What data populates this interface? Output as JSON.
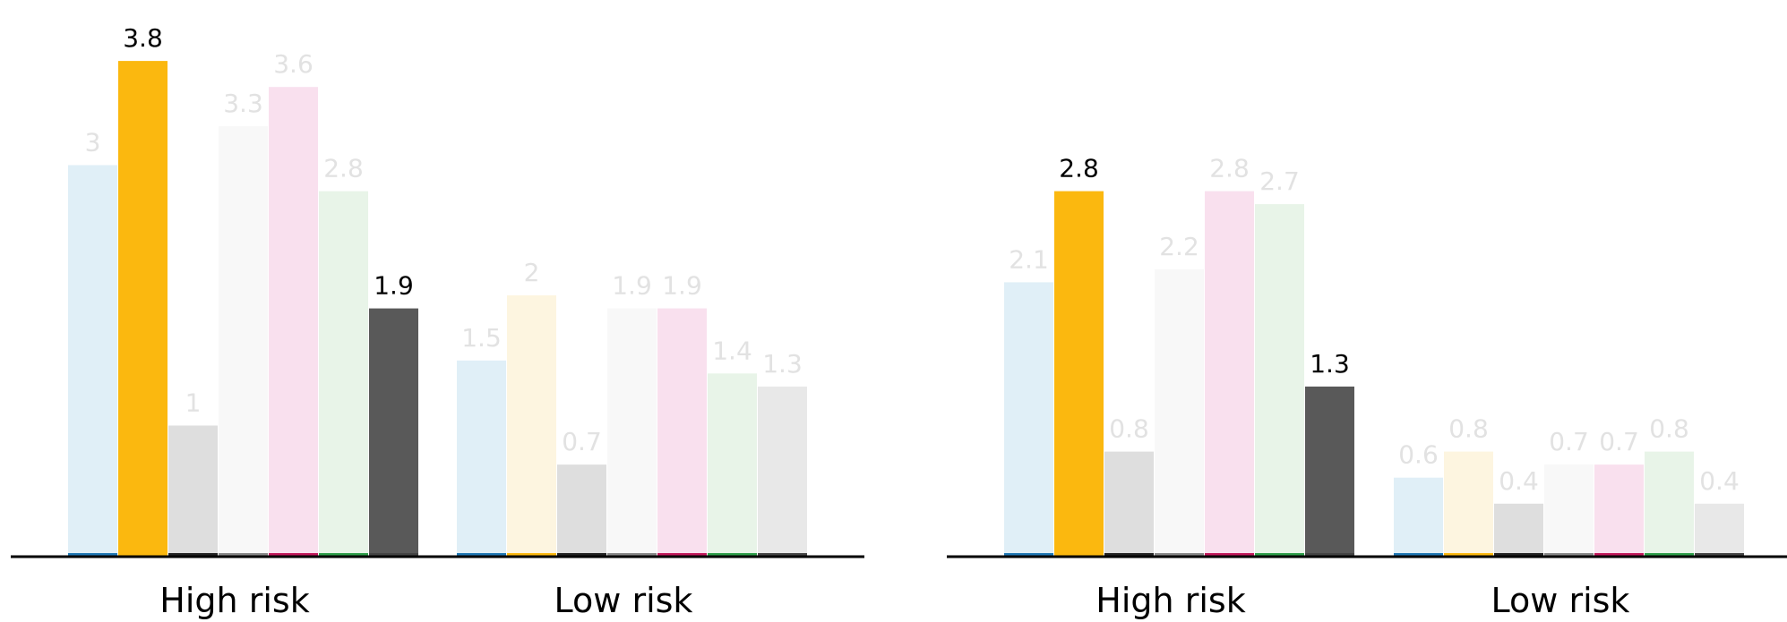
{
  "series_colors": [
    "#e0eff7",
    "#fbb80f",
    "#dedede",
    "#f8f8f8",
    "#f9e0ee",
    "#e8f4e8",
    "#595959"
  ],
  "faded_bar_colors": [
    "#e0eff7",
    "#fdf5e0",
    "#dedede",
    "#f8f8f8",
    "#f9e0ee",
    "#e8f4e8",
    "#e8e8e8"
  ],
  "series_base_colors": [
    "#1f77b4",
    "#fbb80f",
    "#222222",
    "#888888",
    "#c2185b",
    "#2e9e4a",
    "#444444"
  ],
  "label_colors": {
    "highlight": "#000000",
    "muted": "#e2e2e2"
  },
  "chart_data": [
    {
      "type": "bar",
      "categories": [
        "High risk",
        "Low risk"
      ],
      "ylim": [
        0,
        4.2
      ],
      "series": [
        {
          "values": [
            3,
            1.5
          ]
        },
        {
          "values": [
            3.8,
            2
          ]
        },
        {
          "values": [
            1,
            0.7
          ]
        },
        {
          "values": [
            3.3,
            1.9
          ]
        },
        {
          "values": [
            3.6,
            1.9
          ]
        },
        {
          "values": [
            2.8,
            1.4
          ]
        },
        {
          "values": [
            1.9,
            1.3
          ]
        }
      ],
      "highlight": [
        [
          false,
          true,
          false,
          false,
          false,
          false,
          true
        ],
        [
          false,
          false,
          false,
          false,
          false,
          false,
          false
        ]
      ]
    },
    {
      "type": "bar",
      "categories": [
        "High risk",
        "Low risk"
      ],
      "ylim": [
        0,
        4.2
      ],
      "series": [
        {
          "values": [
            2.1,
            0.6
          ]
        },
        {
          "values": [
            2.8,
            0.8
          ]
        },
        {
          "values": [
            0.8,
            0.4
          ]
        },
        {
          "values": [
            2.2,
            0.7
          ]
        },
        {
          "values": [
            2.8,
            0.7
          ]
        },
        {
          "values": [
            2.7,
            0.8
          ]
        },
        {
          "values": [
            1.3,
            0.4
          ]
        }
      ],
      "highlight": [
        [
          false,
          true,
          false,
          false,
          false,
          false,
          true
        ],
        [
          false,
          false,
          false,
          false,
          false,
          false,
          false
        ]
      ]
    }
  ]
}
